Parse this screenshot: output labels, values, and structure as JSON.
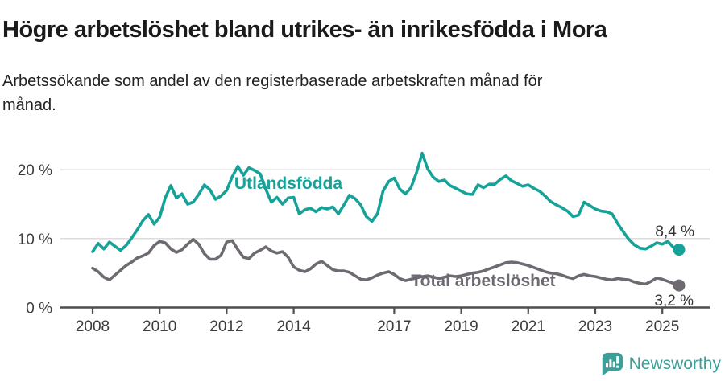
{
  "header": {
    "title": "Högre arbetslöshet bland utrikes- än inrikesfödda i Mora",
    "subtitle": "Arbetssökande som andel av den registerbaserade arbetskraften månad för månad."
  },
  "footer": {
    "brand": "Newsworthy"
  },
  "colors": {
    "teal_line": "#16a299",
    "gray_line": "#6f6a72",
    "grid": "#d8d8d8",
    "axis": "#4d4d4d",
    "tick_text": "#3c3c3c",
    "value_text": "#333333",
    "logo_teal": "#3f9e97"
  },
  "chart_data": {
    "type": "line",
    "title": "Högre arbetslöshet bland utrikes- än inrikesfödda i Mora",
    "subtitle": "Arbetssökande som andel av den registerbaserade arbetskraften månad för månad.",
    "unit": "%",
    "x_start": 2008,
    "x_step_years": 0.166667,
    "x_end": 2025.5,
    "xlim": [
      2007.05,
      2026.4
    ],
    "ylim": [
      0,
      23.5
    ],
    "grid": "horizontal",
    "legend": "inline-labels",
    "x_ticks": [
      2008,
      2010,
      2012,
      2014,
      2017,
      2019,
      2021,
      2023,
      2025
    ],
    "y_ticks": [
      0,
      10,
      20
    ],
    "y_tick_suffix": " %",
    "series": [
      {
        "name": "Utlandsfödda",
        "color": "#16a299",
        "end_value": 8.4,
        "end_label": "8,4 %",
        "values": [
          8.1,
          9.3,
          8.5,
          9.5,
          8.9,
          8.3,
          9.0,
          10.1,
          11.3,
          12.6,
          13.5,
          12.1,
          13.1,
          15.9,
          17.7,
          15.9,
          16.5,
          15.0,
          15.3,
          16.4,
          17.8,
          17.1,
          15.7,
          16.2,
          17.0,
          19.0,
          20.5,
          19.2,
          20.3,
          19.9,
          19.4,
          17.2,
          15.3,
          16.0,
          15.0,
          15.9,
          16.0,
          13.6,
          14.2,
          14.4,
          13.9,
          14.5,
          14.3,
          14.6,
          13.6,
          14.9,
          16.3,
          15.8,
          14.9,
          13.2,
          12.5,
          13.6,
          16.9,
          18.3,
          18.8,
          17.2,
          16.5,
          17.4,
          19.6,
          22.4,
          20.1,
          18.9,
          18.3,
          18.5,
          17.7,
          17.3,
          16.9,
          16.5,
          16.4,
          17.8,
          17.4,
          17.9,
          17.9,
          18.6,
          19.1,
          18.4,
          18.0,
          17.6,
          17.8,
          17.3,
          16.9,
          16.2,
          15.4,
          14.9,
          14.5,
          14.0,
          13.2,
          13.4,
          15.3,
          14.8,
          14.3,
          14.0,
          13.9,
          13.6,
          12.2,
          11.0,
          9.9,
          9.1,
          8.6,
          8.5,
          8.9,
          9.4,
          9.2,
          9.6,
          8.7,
          8.4
        ]
      },
      {
        "name": "Total arbetslöshet",
        "color": "#6f6a72",
        "end_value": 3.2,
        "end_label": "3,2 %",
        "values": [
          5.7,
          5.2,
          4.4,
          4.0,
          4.7,
          5.4,
          6.1,
          6.6,
          7.2,
          7.5,
          7.9,
          9.0,
          9.6,
          9.4,
          8.5,
          8.0,
          8.4,
          9.2,
          9.9,
          9.2,
          7.8,
          7.0,
          7.0,
          7.6,
          9.5,
          9.7,
          8.4,
          7.3,
          7.1,
          7.9,
          8.3,
          8.8,
          8.2,
          7.9,
          8.1,
          7.3,
          5.9,
          5.4,
          5.2,
          5.6,
          6.3,
          6.7,
          6.1,
          5.5,
          5.3,
          5.3,
          5.1,
          4.6,
          4.1,
          4.0,
          4.3,
          4.7,
          5.0,
          5.2,
          4.8,
          4.2,
          3.9,
          4.1,
          4.3,
          4.5,
          4.6,
          4.4,
          4.2,
          4.4,
          4.6,
          4.5,
          4.6,
          4.8,
          5.0,
          5.1,
          5.3,
          5.6,
          5.9,
          6.2,
          6.5,
          6.6,
          6.5,
          6.3,
          6.1,
          5.8,
          5.5,
          5.2,
          5.0,
          4.9,
          4.7,
          4.4,
          4.2,
          4.6,
          4.8,
          4.6,
          4.5,
          4.3,
          4.1,
          4.0,
          4.2,
          4.1,
          4.0,
          3.7,
          3.5,
          3.4,
          3.8,
          4.3,
          4.1,
          3.8,
          3.5,
          3.2
        ]
      }
    ]
  }
}
